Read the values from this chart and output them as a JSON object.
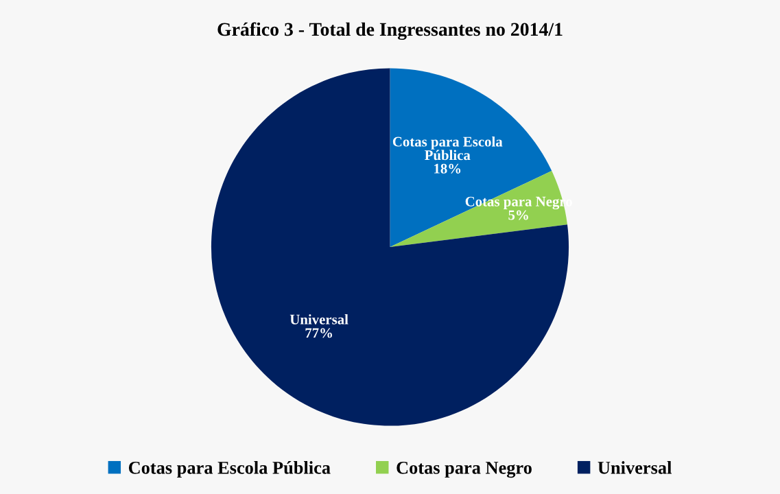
{
  "chart_data": {
    "type": "pie",
    "title": "Gráfico 3 - Total de Ingressantes no 2014/1",
    "categories": [
      "Cotas para Escola Pública",
      "Cotas para Negro",
      "Universal"
    ],
    "values": [
      18,
      5,
      77
    ],
    "value_labels": [
      "18%",
      "5%",
      "77%"
    ],
    "colors": [
      "#0070c0",
      "#92d050",
      "#002060"
    ],
    "legend": "bottom"
  }
}
